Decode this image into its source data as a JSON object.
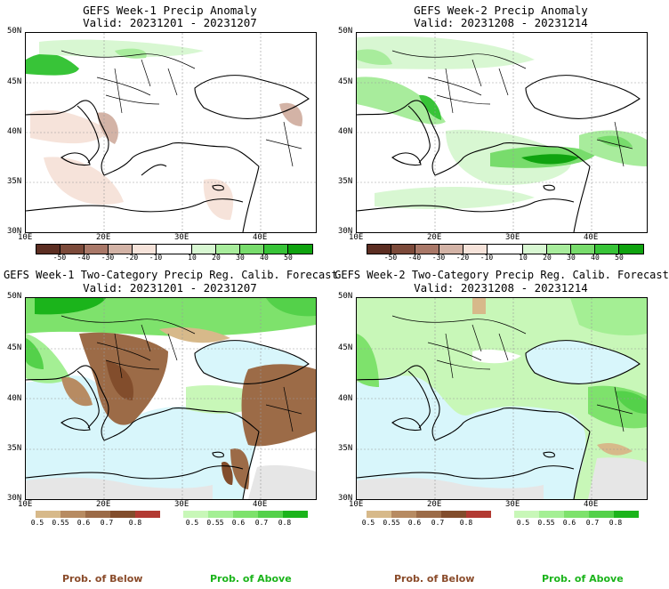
{
  "colors": {
    "ocean": "#d8f6fb",
    "gray_land": "#e6e6e6",
    "below": [
      "#d7b98a",
      "#b78b62",
      "#9c6b47",
      "#824d2c",
      "#b23a32"
    ],
    "above": [
      "#c8f7b8",
      "#a4ef94",
      "#7ee26c",
      "#54d14a",
      "#1bb41b"
    ],
    "anom_dry": [
      "#5c2e22",
      "#7c4a3a",
      "#a97868",
      "#d3b3a6",
      "#f6e3da"
    ],
    "anom_wet": [
      "#d8f7d2",
      "#a8ec9c",
      "#78dc6c",
      "#38c438",
      "#0fa30f"
    ]
  },
  "panels": [
    {
      "title": "GEFS Week-1 Precip Anomaly",
      "valid": "Valid: 20231201 - 20231207",
      "lat_labels": [
        "50N",
        "45N",
        "40N",
        "35N",
        "30N"
      ],
      "lon_labels": [
        "10E",
        "20E",
        "30E",
        "40E"
      ],
      "colorbar_labels": [
        "-50",
        "-40",
        "-30",
        "-20",
        "-10",
        "10",
        "20",
        "30",
        "40",
        "50"
      ]
    },
    {
      "title": "GEFS Week-2 Precip Anomaly",
      "valid": "Valid: 20231208 - 20231214",
      "lat_labels": [
        "50N",
        "45N",
        "40N",
        "35N",
        "30N"
      ],
      "lon_labels": [
        "10E",
        "20E",
        "30E",
        "40E"
      ],
      "colorbar_labels": [
        "-50",
        "-40",
        "-30",
        "-20",
        "-10",
        "10",
        "20",
        "30",
        "40",
        "50"
      ]
    },
    {
      "title": "GEFS Week-1 Two-Category Precip Reg. Calib. Forecast",
      "valid": "Valid: 20231201 - 20231207",
      "lat_labels": [
        "50N",
        "45N",
        "40N",
        "35N",
        "30N"
      ],
      "lon_labels": [
        "10E",
        "20E",
        "30E",
        "40E"
      ],
      "below_labels": [
        "0.5",
        "0.55",
        "0.6",
        "0.7",
        "0.8"
      ],
      "above_labels": [
        "0.5",
        "0.55",
        "0.6",
        "0.7",
        "0.8"
      ]
    },
    {
      "title": "GEFS Week-2 Two-Category Precip Reg. Calib. Forecast",
      "valid": "Valid: 20231208 - 20231214",
      "lat_labels": [
        "50N",
        "45N",
        "40N",
        "35N",
        "30N"
      ],
      "lon_labels": [
        "10E",
        "20E",
        "30E",
        "40E"
      ],
      "below_labels": [
        "0.5",
        "0.55",
        "0.6",
        "0.7",
        "0.8"
      ],
      "above_labels": [
        "0.5",
        "0.55",
        "0.6",
        "0.7",
        "0.8"
      ]
    }
  ],
  "legend": {
    "below": "Prob. of Below",
    "above": "Prob. of Above"
  }
}
